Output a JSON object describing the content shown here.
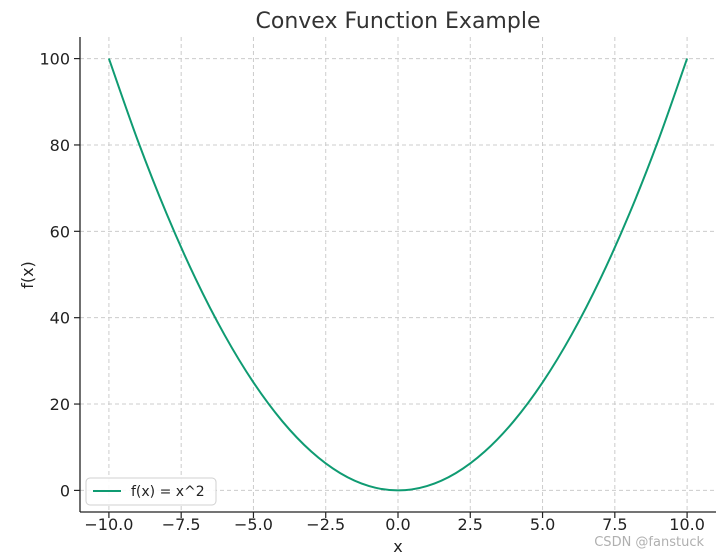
{
  "chart_data": {
    "type": "line",
    "title": "Convex Function Example",
    "xlabel": "x",
    "ylabel": "f(x)",
    "xlim": [
      -11,
      11
    ],
    "ylim": [
      -5,
      105
    ],
    "xticks": [
      -10.0,
      -7.5,
      -5.0,
      -2.5,
      0.0,
      2.5,
      5.0,
      7.5,
      10.0
    ],
    "xtick_labels": [
      "−10.0",
      "−7.5",
      "−5.0",
      "−2.5",
      "0.0",
      "2.5",
      "5.0",
      "7.5",
      "10.0"
    ],
    "yticks": [
      0,
      20,
      40,
      60,
      80,
      100
    ],
    "ytick_labels": [
      "0",
      "20",
      "40",
      "60",
      "80",
      "100"
    ],
    "grid": true,
    "legend_position": "lower-left",
    "series": [
      {
        "name": "f(x) = x^2",
        "color": "#0f9b72",
        "x": [
          -10,
          -9,
          -8,
          -7,
          -6,
          -5,
          -4,
          -3,
          -2,
          -1,
          0,
          1,
          2,
          3,
          4,
          5,
          6,
          7,
          8,
          9,
          10
        ],
        "y": [
          100,
          81,
          64,
          49,
          36,
          25,
          16,
          9,
          4,
          1,
          0,
          1,
          4,
          9,
          16,
          25,
          36,
          49,
          64,
          81,
          100
        ]
      }
    ]
  },
  "watermark": "CSDN @fanstuck"
}
